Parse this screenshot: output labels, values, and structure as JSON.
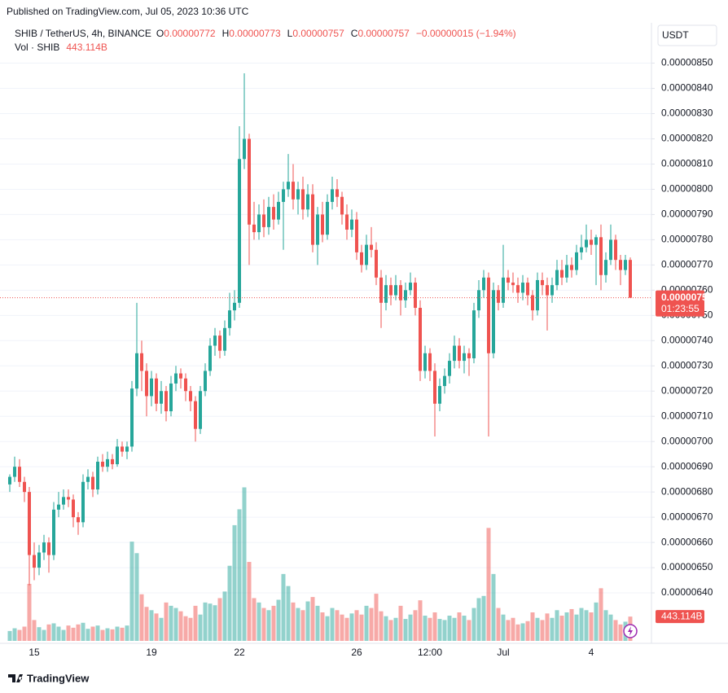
{
  "published": "Published on TradingView.com, Jul 05, 2023 10:36 UTC",
  "footer": "TradingView",
  "chart_data": {
    "type": "candlestick",
    "title": "SHIB / TetherUS, 4h, BINANCE",
    "ohlc_labels": [
      "O",
      "H",
      "L",
      "C"
    ],
    "change_label": "−0.00000015 (−1.94%)",
    "currency": "USDT",
    "countdown": "01:23:55",
    "up_color": "#26a69a",
    "down_color": "#ef5350",
    "grid": true,
    "ylim": [
      6.2e-06,
      8.66e-06
    ],
    "yticks": [
      {
        "value": 6.4e-06,
        "label": "0.00000640"
      },
      {
        "value": 6.5e-06,
        "label": "0.00000650"
      },
      {
        "value": 6.6e-06,
        "label": "0.00000660"
      },
      {
        "value": 6.7e-06,
        "label": "0.00000670"
      },
      {
        "value": 6.8e-06,
        "label": "0.00000680"
      },
      {
        "value": 6.9e-06,
        "label": "0.00000690"
      },
      {
        "value": 7e-06,
        "label": "0.00000700"
      },
      {
        "value": 7.1e-06,
        "label": "0.00000710"
      },
      {
        "value": 7.2e-06,
        "label": "0.00000720"
      },
      {
        "value": 7.3e-06,
        "label": "0.00000730"
      },
      {
        "value": 7.4e-06,
        "label": "0.00000740"
      },
      {
        "value": 7.5e-06,
        "label": "0.00000750"
      },
      {
        "value": 7.6e-06,
        "label": "0.00000760"
      },
      {
        "value": 7.7e-06,
        "label": "0.00000770"
      },
      {
        "value": 7.8e-06,
        "label": "0.00000780"
      },
      {
        "value": 7.9e-06,
        "label": "0.00000790"
      },
      {
        "value": 8e-06,
        "label": "0.00000800"
      },
      {
        "value": 8.1e-06,
        "label": "0.00000810"
      },
      {
        "value": 8.2e-06,
        "label": "0.00000820"
      },
      {
        "value": 8.3e-06,
        "label": "0.00000830"
      },
      {
        "value": 8.4e-06,
        "label": "0.00000840"
      },
      {
        "value": 8.5e-06,
        "label": "0.00000850"
      }
    ],
    "y2lim": [
      0,
      3000
    ],
    "categories": [
      null,
      null,
      null,
      null,
      null,
      "15",
      null,
      null,
      null,
      null,
      null,
      null,
      null,
      null,
      null,
      null,
      null,
      null,
      null,
      null,
      null,
      null,
      null,
      null,
      null,
      null,
      null,
      null,
      null,
      "19",
      null,
      null,
      null,
      null,
      null,
      null,
      null,
      null,
      null,
      null,
      null,
      null,
      null,
      null,
      null,
      null,
      null,
      "22",
      null,
      null,
      null,
      null,
      null,
      null,
      null,
      null,
      null,
      null,
      null,
      null,
      null,
      null,
      null,
      null,
      null,
      null,
      null,
      null,
      null,
      null,
      null,
      "26",
      null,
      null,
      null,
      null,
      null,
      null,
      null,
      null,
      null,
      null,
      null,
      null,
      null,
      null,
      "12:00",
      null,
      null,
      null,
      null,
      null,
      null,
      null,
      null,
      null,
      null,
      null,
      null,
      null,
      null,
      "Jul",
      null,
      null,
      null,
      null,
      null,
      null,
      null,
      null,
      null,
      null,
      null,
      null,
      null,
      null,
      null,
      null,
      null,
      "4",
      null,
      null,
      null,
      null,
      null,
      null,
      null,
      null
    ],
    "open": [
      6.83e-06,
      6.86e-06,
      6.9e-06,
      6.84e-06,
      6.8e-06,
      6.55e-06,
      6.5e-06,
      6.56e-06,
      6.6e-06,
      6.55e-06,
      6.73e-06,
      6.75e-06,
      6.78e-06,
      6.77e-06,
      6.7e-06,
      6.68e-06,
      6.84e-06,
      6.86e-06,
      6.81e-06,
      6.92e-06,
      6.9e-06,
      6.93e-06,
      6.91e-06,
      6.98e-06,
      6.96e-06,
      6.98e-06,
      7.21e-06,
      7.35e-06,
      7.28e-06,
      7.18e-06,
      7.25e-06,
      7.15e-06,
      7.2e-06,
      7.12e-06,
      7.23e-06,
      7.27e-06,
      7.25e-06,
      7.2e-06,
      7.16e-06,
      7.05e-06,
      7.2e-06,
      7.28e-06,
      7.38e-06,
      7.42e-06,
      7.36e-06,
      7.45e-06,
      7.52e-06,
      7.55e-06,
      8.12e-06,
      8.2e-06,
      7.86e-06,
      7.83e-06,
      7.9e-06,
      7.85e-06,
      7.93e-06,
      7.88e-06,
      7.95e-06,
      8e-06,
      8.03e-06,
      7.96e-06,
      8e-06,
      7.92e-06,
      7.98e-06,
      7.78e-06,
      7.9e-06,
      7.82e-06,
      7.95e-06,
      8e-06,
      7.97e-06,
      7.9e-06,
      7.84e-06,
      7.88e-06,
      7.75e-06,
      7.7e-06,
      7.78e-06,
      7.76e-06,
      7.65e-06,
      7.55e-06,
      7.62e-06,
      7.58e-06,
      7.62e-06,
      7.56e-06,
      7.6e-06,
      7.63e-06,
      7.53e-06,
      7.28e-06,
      7.35e-06,
      7.28e-06,
      7.15e-06,
      7.22e-06,
      7.26e-06,
      7.32e-06,
      7.38e-06,
      7.32e-06,
      7.35e-06,
      7.33e-06,
      7.52e-06,
      7.6e-06,
      7.65e-06,
      7.35e-06,
      7.6e-06,
      7.55e-06,
      7.65e-06,
      7.63e-06,
      7.62e-06,
      7.59e-06,
      7.63e-06,
      7.58e-06,
      7.52e-06,
      7.64e-06,
      7.62e-06,
      7.58e-06,
      7.62e-06,
      7.68e-06,
      7.65e-06,
      7.7e-06,
      7.68e-06,
      7.75e-06,
      7.77e-06,
      7.8e-06,
      7.78e-06,
      7.81e-06,
      7.66e-06,
      7.72e-06,
      7.8e-06,
      7.72e-06,
      7.68e-06,
      7.72e-06
    ],
    "high": [
      6.87e-06,
      6.94e-06,
      6.93e-06,
      6.86e-06,
      6.82e-06,
      6.6e-06,
      6.59e-06,
      6.63e-06,
      6.62e-06,
      6.76e-06,
      6.8e-06,
      6.81e-06,
      6.81e-06,
      6.79e-06,
      6.72e-06,
      6.87e-06,
      6.89e-06,
      6.88e-06,
      6.94e-06,
      6.95e-06,
      6.96e-06,
      6.95e-06,
      7.01e-06,
      7e-06,
      7e-06,
      7.24e-06,
      7.55e-06,
      7.4e-06,
      7.31e-06,
      7.28e-06,
      7.27e-06,
      7.24e-06,
      7.22e-06,
      7.26e-06,
      7.3e-06,
      7.29e-06,
      7.27e-06,
      7.22e-06,
      7.18e-06,
      7.22e-06,
      7.31e-06,
      7.41e-06,
      7.45e-06,
      7.44e-06,
      7.48e-06,
      7.59e-06,
      7.6e-06,
      8.25e-06,
      8.46e-06,
      8.22e-06,
      7.95e-06,
      7.94e-06,
      7.96e-06,
      7.97e-06,
      7.98e-06,
      7.99e-06,
      8.03e-06,
      8.14e-06,
      8.1e-06,
      8.03e-06,
      8.05e-06,
      8.02e-06,
      8.02e-06,
      7.93e-06,
      7.95e-06,
      7.98e-06,
      8.05e-06,
      8.04e-06,
      7.99e-06,
      7.94e-06,
      7.92e-06,
      7.91e-06,
      7.78e-06,
      7.82e-06,
      7.85e-06,
      7.79e-06,
      7.68e-06,
      7.66e-06,
      7.65e-06,
      7.66e-06,
      7.64e-06,
      7.63e-06,
      7.67e-06,
      7.65e-06,
      7.56e-06,
      7.38e-06,
      7.37e-06,
      7.31e-06,
      7.25e-06,
      7.29e-06,
      7.35e-06,
      7.42e-06,
      7.41e-06,
      7.38e-06,
      7.37e-06,
      7.55e-06,
      7.64e-06,
      7.68e-06,
      7.67e-06,
      7.63e-06,
      7.62e-06,
      7.78e-06,
      7.68e-06,
      7.67e-06,
      7.65e-06,
      7.66e-06,
      7.65e-06,
      7.6e-06,
      7.67e-06,
      7.67e-06,
      7.65e-06,
      7.65e-06,
      7.72e-06,
      7.72e-06,
      7.74e-06,
      7.73e-06,
      7.78e-06,
      7.82e-06,
      7.86e-06,
      7.84e-06,
      7.82e-06,
      7.86e-06,
      7.75e-06,
      7.86e-06,
      7.82e-06,
      7.74e-06,
      7.74e-06,
      7.73e-06
    ],
    "low": [
      6.8e-06,
      6.84e-06,
      6.82e-06,
      6.76e-06,
      6.43e-06,
      6.45e-06,
      6.47e-06,
      6.53e-06,
      6.48e-06,
      6.53e-06,
      6.7e-06,
      6.73e-06,
      6.74e-06,
      6.66e-06,
      6.63e-06,
      6.66e-06,
      6.81e-06,
      6.78e-06,
      6.79e-06,
      6.88e-06,
      6.88e-06,
      6.89e-06,
      6.9e-06,
      6.94e-06,
      6.93e-06,
      6.96e-06,
      7.18e-06,
      7.2e-06,
      7.1e-06,
      7.14e-06,
      7.12e-06,
      7.11e-06,
      7.08e-06,
      7.1e-06,
      7.2e-06,
      7.21e-06,
      7.16e-06,
      7.12e-06,
      7e-06,
      7.03e-06,
      7.18e-06,
      7.26e-06,
      7.34e-06,
      7.33e-06,
      7.34e-06,
      7.42e-06,
      7.48e-06,
      7.53e-06,
      8.08e-06,
      7.7e-06,
      7.8e-06,
      7.8e-06,
      7.81e-06,
      7.82e-06,
      7.84e-06,
      7.86e-06,
      7.76e-06,
      7.97e-06,
      7.92e-06,
      7.9e-06,
      7.88e-06,
      7.89e-06,
      7.75e-06,
      7.7e-06,
      7.79e-06,
      7.8e-06,
      7.92e-06,
      7.93e-06,
      7.86e-06,
      7.8e-06,
      7.81e-06,
      7.72e-06,
      7.67e-06,
      7.68e-06,
      7.73e-06,
      7.62e-06,
      7.45e-06,
      7.52e-06,
      7.54e-06,
      7.56e-06,
      7.5e-06,
      7.53e-06,
      7.58e-06,
      7.5e-06,
      7.24e-06,
      7.25e-06,
      7.24e-06,
      7.02e-06,
      7.12e-06,
      7.19e-06,
      7.23e-06,
      7.29e-06,
      7.29e-06,
      7.27e-06,
      7.26e-06,
      7.31e-06,
      7.49e-06,
      7.57e-06,
      7.02e-06,
      7.33e-06,
      7.52e-06,
      7.53e-06,
      7.6e-06,
      7.59e-06,
      7.55e-06,
      7.56e-06,
      7.54e-06,
      7.48e-06,
      7.5e-06,
      7.58e-06,
      7.44e-06,
      7.55e-06,
      7.6e-06,
      7.62e-06,
      7.63e-06,
      7.65e-06,
      7.66e-06,
      7.72e-06,
      7.75e-06,
      7.74e-06,
      7.62e-06,
      7.6e-06,
      7.63e-06,
      7.7e-06,
      7.68e-06,
      7.62e-06,
      7.66e-06,
      7.57e-06
    ],
    "close": [
      6.86e-06,
      6.9e-06,
      6.84e-06,
      6.8e-06,
      6.55e-06,
      6.5e-06,
      6.56e-06,
      6.6e-06,
      6.55e-06,
      6.73e-06,
      6.75e-06,
      6.78e-06,
      6.77e-06,
      6.7e-06,
      6.68e-06,
      6.84e-06,
      6.86e-06,
      6.81e-06,
      6.92e-06,
      6.9e-06,
      6.93e-06,
      6.91e-06,
      6.98e-06,
      6.96e-06,
      6.98e-06,
      7.21e-06,
      7.35e-06,
      7.28e-06,
      7.18e-06,
      7.25e-06,
      7.15e-06,
      7.2e-06,
      7.12e-06,
      7.23e-06,
      7.27e-06,
      7.25e-06,
      7.2e-06,
      7.16e-06,
      7.05e-06,
      7.2e-06,
      7.28e-06,
      7.38e-06,
      7.42e-06,
      7.36e-06,
      7.45e-06,
      7.52e-06,
      7.55e-06,
      8.12e-06,
      8.2e-06,
      7.86e-06,
      7.83e-06,
      7.9e-06,
      7.85e-06,
      7.93e-06,
      7.88e-06,
      7.95e-06,
      8e-06,
      8.03e-06,
      7.96e-06,
      8e-06,
      7.92e-06,
      7.98e-06,
      7.78e-06,
      7.9e-06,
      7.82e-06,
      7.95e-06,
      8e-06,
      7.97e-06,
      7.9e-06,
      7.84e-06,
      7.88e-06,
      7.75e-06,
      7.7e-06,
      7.78e-06,
      7.76e-06,
      7.65e-06,
      7.55e-06,
      7.62e-06,
      7.58e-06,
      7.62e-06,
      7.56e-06,
      7.6e-06,
      7.63e-06,
      7.53e-06,
      7.28e-06,
      7.35e-06,
      7.28e-06,
      7.15e-06,
      7.22e-06,
      7.26e-06,
      7.32e-06,
      7.38e-06,
      7.32e-06,
      7.35e-06,
      7.33e-06,
      7.52e-06,
      7.6e-06,
      7.65e-06,
      7.35e-06,
      7.6e-06,
      7.55e-06,
      7.65e-06,
      7.63e-06,
      7.62e-06,
      7.59e-06,
      7.63e-06,
      7.58e-06,
      7.52e-06,
      7.64e-06,
      7.62e-06,
      7.58e-06,
      7.62e-06,
      7.68e-06,
      7.65e-06,
      7.7e-06,
      7.68e-06,
      7.75e-06,
      7.77e-06,
      7.8e-06,
      7.78e-06,
      7.81e-06,
      7.66e-06,
      7.72e-06,
      7.8e-06,
      7.72e-06,
      7.68e-06,
      7.72e-06,
      7.57e-06
    ],
    "volume": {
      "name": "Vol · SHIB",
      "axis": "y2",
      "values": [
        180,
        230,
        200,
        260,
        1040,
        380,
        250,
        200,
        300,
        320,
        260,
        200,
        280,
        240,
        300,
        330,
        220,
        260,
        280,
        200,
        230,
        210,
        260,
        240,
        280,
        1810,
        1600,
        850,
        620,
        560,
        500,
        420,
        700,
        640,
        600,
        540,
        450,
        420,
        640,
        480,
        700,
        680,
        650,
        780,
        900,
        1370,
        2110,
        2400,
        2800,
        1440,
        780,
        700,
        600,
        560,
        640,
        750,
        1220,
        1000,
        700,
        600,
        560,
        720,
        800,
        640,
        520,
        450,
        600,
        560,
        480,
        420,
        500,
        560,
        480,
        640,
        600,
        860,
        540,
        450,
        380,
        420,
        640,
        400,
        480,
        560,
        740,
        460,
        420,
        520,
        400,
        380,
        460,
        420,
        520,
        460,
        380,
        600,
        780,
        820,
        2060,
        1220,
        600,
        480,
        380,
        420,
        300,
        320,
        360,
        520,
        420,
        380,
        500,
        420,
        560,
        460,
        520,
        580,
        480,
        600,
        560,
        520,
        700,
        960,
        560,
        480,
        380,
        300,
        350,
        443.114
      ],
      "value_labels": [
        null,
        null,
        null,
        null,
        null,
        null,
        null,
        null,
        null,
        null,
        null,
        null,
        null,
        null,
        null,
        null,
        null,
        null,
        null,
        null,
        null,
        null,
        null,
        null,
        null,
        null,
        null,
        null,
        null,
        null,
        null,
        null,
        null,
        null,
        null,
        null,
        null,
        null,
        null,
        null,
        null,
        null,
        null,
        null,
        null,
        null,
        null,
        null,
        null,
        null,
        null,
        null,
        null,
        null,
        null,
        null,
        null,
        null,
        null,
        null,
        null,
        null,
        null,
        null,
        null,
        null,
        null,
        null,
        null,
        null,
        null,
        null,
        null,
        null,
        null,
        null,
        null,
        null,
        null,
        null,
        null,
        null,
        null,
        null,
        null,
        null,
        null,
        null,
        null,
        null,
        null,
        null,
        null,
        null,
        null,
        null,
        null,
        null,
        null,
        null,
        null,
        null,
        null,
        null,
        null,
        null,
        null,
        null,
        null,
        null,
        null,
        null,
        null,
        null,
        null,
        null,
        null,
        null,
        null,
        null,
        null,
        null,
        null,
        null,
        null,
        null,
        null,
        "443.114B"
      ]
    }
  }
}
